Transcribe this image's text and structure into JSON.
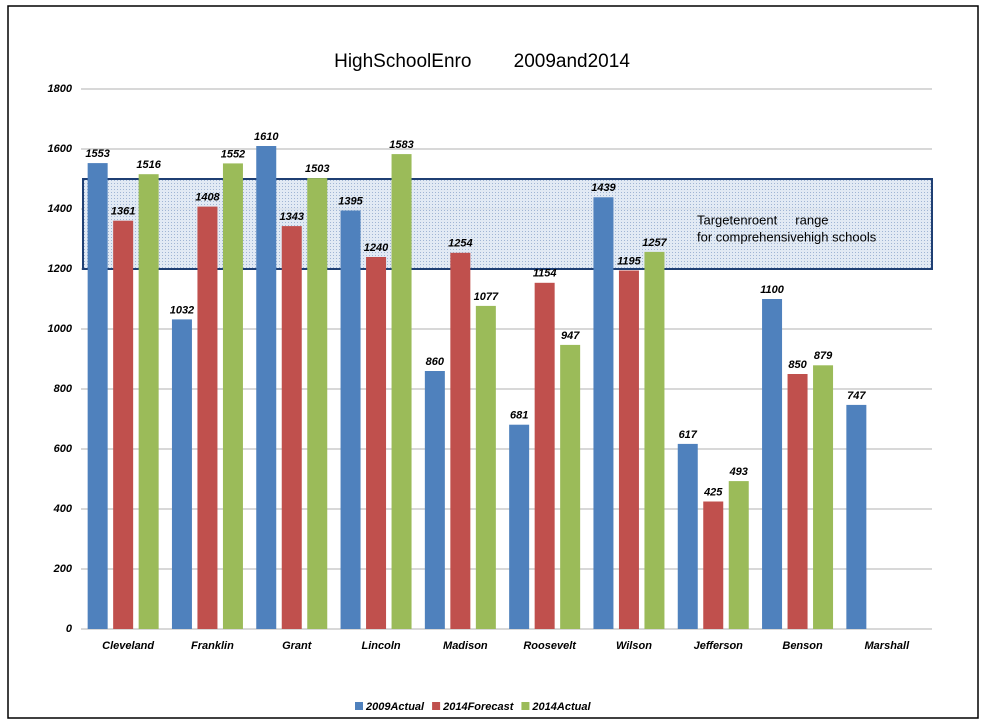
{
  "chart_data": {
    "type": "bar",
    "title": "HighSchoolEnro        2009and2014",
    "categories": [
      "Cleveland",
      "Franklin",
      "Grant",
      "Lincoln",
      "Madison",
      "Roosevelt",
      "Wilson",
      "Jefferson",
      "Benson",
      "Marshall"
    ],
    "series": [
      {
        "name": "2009Actual",
        "color": "#4f81bd",
        "values": [
          1553,
          1032,
          1610,
          1395,
          860,
          681,
          1439,
          617,
          1100,
          747
        ]
      },
      {
        "name": "2014Forecast",
        "color": "#c0504d",
        "values": [
          1361,
          1408,
          1343,
          1240,
          1254,
          1154,
          1195,
          425,
          850,
          null
        ]
      },
      {
        "name": "2014Actual",
        "color": "#9bbb59",
        "values": [
          1516,
          1552,
          1503,
          1583,
          1077,
          947,
          1257,
          493,
          879,
          null
        ]
      }
    ],
    "ylim": [
      0,
      1800
    ],
    "yticks": [
      0,
      200,
      400,
      600,
      800,
      1000,
      1200,
      1400,
      1600,
      1800
    ],
    "grid": true,
    "target_range": [
      1200,
      1500
    ],
    "annotations": [
      "Targetenroent     range",
      "for comprehensivehigh schools"
    ],
    "legend": "bottom"
  }
}
